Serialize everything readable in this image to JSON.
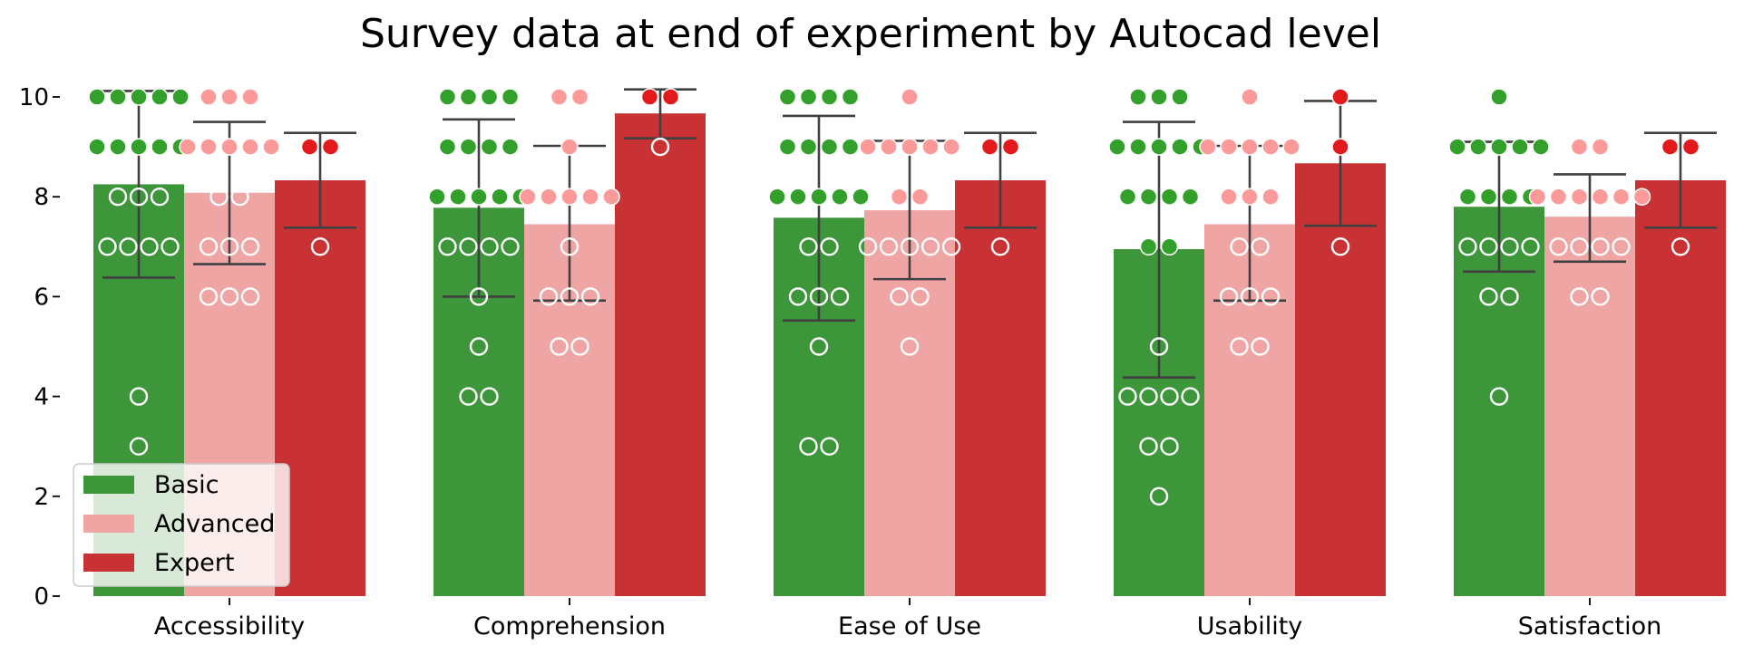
{
  "chart_data": {
    "type": "bar",
    "title": "Survey data at end of experiment by Autocad level",
    "xlabel": "",
    "ylabel": "",
    "ylim": [
      0,
      10.5
    ],
    "yticks": [
      0,
      2,
      4,
      6,
      8,
      10
    ],
    "categories": [
      "Accessibility",
      "Comprehension",
      "Ease of Use",
      "Usability",
      "Satisfaction"
    ],
    "grid": false,
    "legend_position": "bottom-left",
    "series": [
      {
        "name": "Basic",
        "color": "#3d9639",
        "dot_color": "#33a02c",
        "values": [
          8.25,
          7.78,
          7.58,
          6.95,
          7.8
        ],
        "ci": [
          [
            6.38,
            10.12
          ],
          [
            6.0,
            9.55
          ],
          [
            5.52,
            9.62
          ],
          [
            4.38,
            9.5
          ],
          [
            6.5,
            9.1
          ]
        ],
        "points": [
          [
            10,
            10,
            10,
            10,
            10,
            9,
            9,
            9,
            9,
            9,
            8,
            8,
            8,
            7,
            7,
            7,
            7,
            4,
            3
          ],
          [
            10,
            10,
            10,
            10,
            9,
            9,
            9,
            9,
            8,
            8,
            8,
            8,
            8,
            7,
            7,
            7,
            7,
            6,
            5,
            4,
            4
          ],
          [
            10,
            10,
            10,
            10,
            9,
            9,
            9,
            9,
            8,
            8,
            8,
            8,
            8,
            7,
            7,
            6,
            6,
            6,
            5,
            3,
            3
          ],
          [
            10,
            10,
            10,
            9,
            9,
            9,
            9,
            9,
            8,
            8,
            8,
            8,
            7,
            7,
            5,
            4,
            4,
            4,
            4,
            3,
            3,
            2
          ],
          [
            10,
            9,
            9,
            9,
            9,
            9,
            8,
            8,
            8,
            8,
            7,
            7,
            7,
            7,
            6,
            6,
            4
          ]
        ]
      },
      {
        "name": "Advanced",
        "color": "#f0a5a5",
        "dot_color": "#fb9a99",
        "values": [
          8.08,
          7.45,
          7.73,
          7.45,
          7.6
        ],
        "ci": [
          [
            6.65,
            9.5
          ],
          [
            5.92,
            9.02
          ],
          [
            6.35,
            9.12
          ],
          [
            5.92,
            9.02
          ],
          [
            6.7,
            8.45
          ]
        ],
        "points": [
          [
            10,
            10,
            10,
            9,
            9,
            9,
            9,
            9,
            8,
            8,
            7,
            7,
            7,
            6,
            6,
            6
          ],
          [
            10,
            10,
            9,
            8,
            8,
            8,
            8,
            8,
            7,
            6,
            6,
            6,
            5,
            5
          ],
          [
            10,
            9,
            9,
            9,
            9,
            9,
            8,
            8,
            7,
            7,
            7,
            7,
            7,
            6,
            6,
            5
          ],
          [
            10,
            9,
            9,
            9,
            9,
            9,
            8,
            8,
            8,
            7,
            7,
            6,
            6,
            6,
            5,
            5
          ],
          [
            9,
            9,
            8,
            8,
            8,
            8,
            8,
            8,
            7,
            7,
            7,
            7,
            6,
            6
          ]
        ]
      },
      {
        "name": "Expert",
        "color": "#c83235",
        "dot_color": "#e31a1c",
        "values": [
          8.33,
          9.67,
          8.33,
          8.67,
          8.33
        ],
        "ci": [
          [
            7.38,
            9.28
          ],
          [
            9.17,
            10.15
          ],
          [
            7.38,
            9.28
          ],
          [
            7.42,
            9.92
          ],
          [
            7.38,
            9.28
          ]
        ],
        "points": [
          [
            9,
            9,
            7
          ],
          [
            10,
            10,
            9
          ],
          [
            9,
            9,
            7
          ],
          [
            10,
            9,
            7
          ],
          [
            9,
            9,
            7
          ]
        ]
      }
    ]
  }
}
